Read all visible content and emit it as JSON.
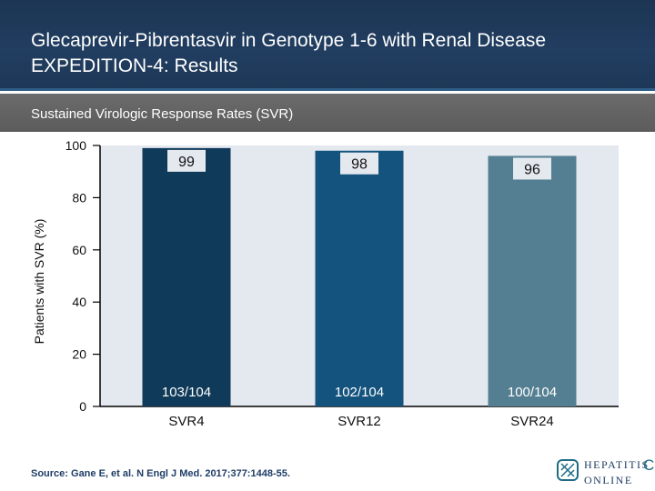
{
  "header": {
    "title_line1": "Glecaprevir-Pibrentasvir in Genotype 1-6 with Renal Disease",
    "title_line2": "EXPEDITION-4: Results"
  },
  "subheader": {
    "text": "Sustained Virologic Response Rates (SVR)"
  },
  "chart_data": {
    "type": "bar",
    "title": "",
    "xlabel": "",
    "ylabel": "Patients with SVR (%)",
    "ylim": [
      0,
      100
    ],
    "yticks": [
      0,
      20,
      40,
      60,
      80,
      100
    ],
    "grid": false,
    "categories": [
      "SVR4",
      "SVR12",
      "SVR24"
    ],
    "values": [
      99,
      98,
      96
    ],
    "value_labels": [
      "99",
      "98",
      "96"
    ],
    "count_labels": [
      "103/104",
      "102/104",
      "100/104"
    ],
    "bar_colors": [
      "#0f3a59",
      "#13537d",
      "#547f92"
    ],
    "plot_background": "#e4e8ef"
  },
  "footer": {
    "source": "Source: Gane E, et al. N Engl J Med. 2017;377:1448-55."
  },
  "logo": {
    "line1": "HEPATITIS",
    "line2": "ONLINE",
    "letter": "C"
  }
}
